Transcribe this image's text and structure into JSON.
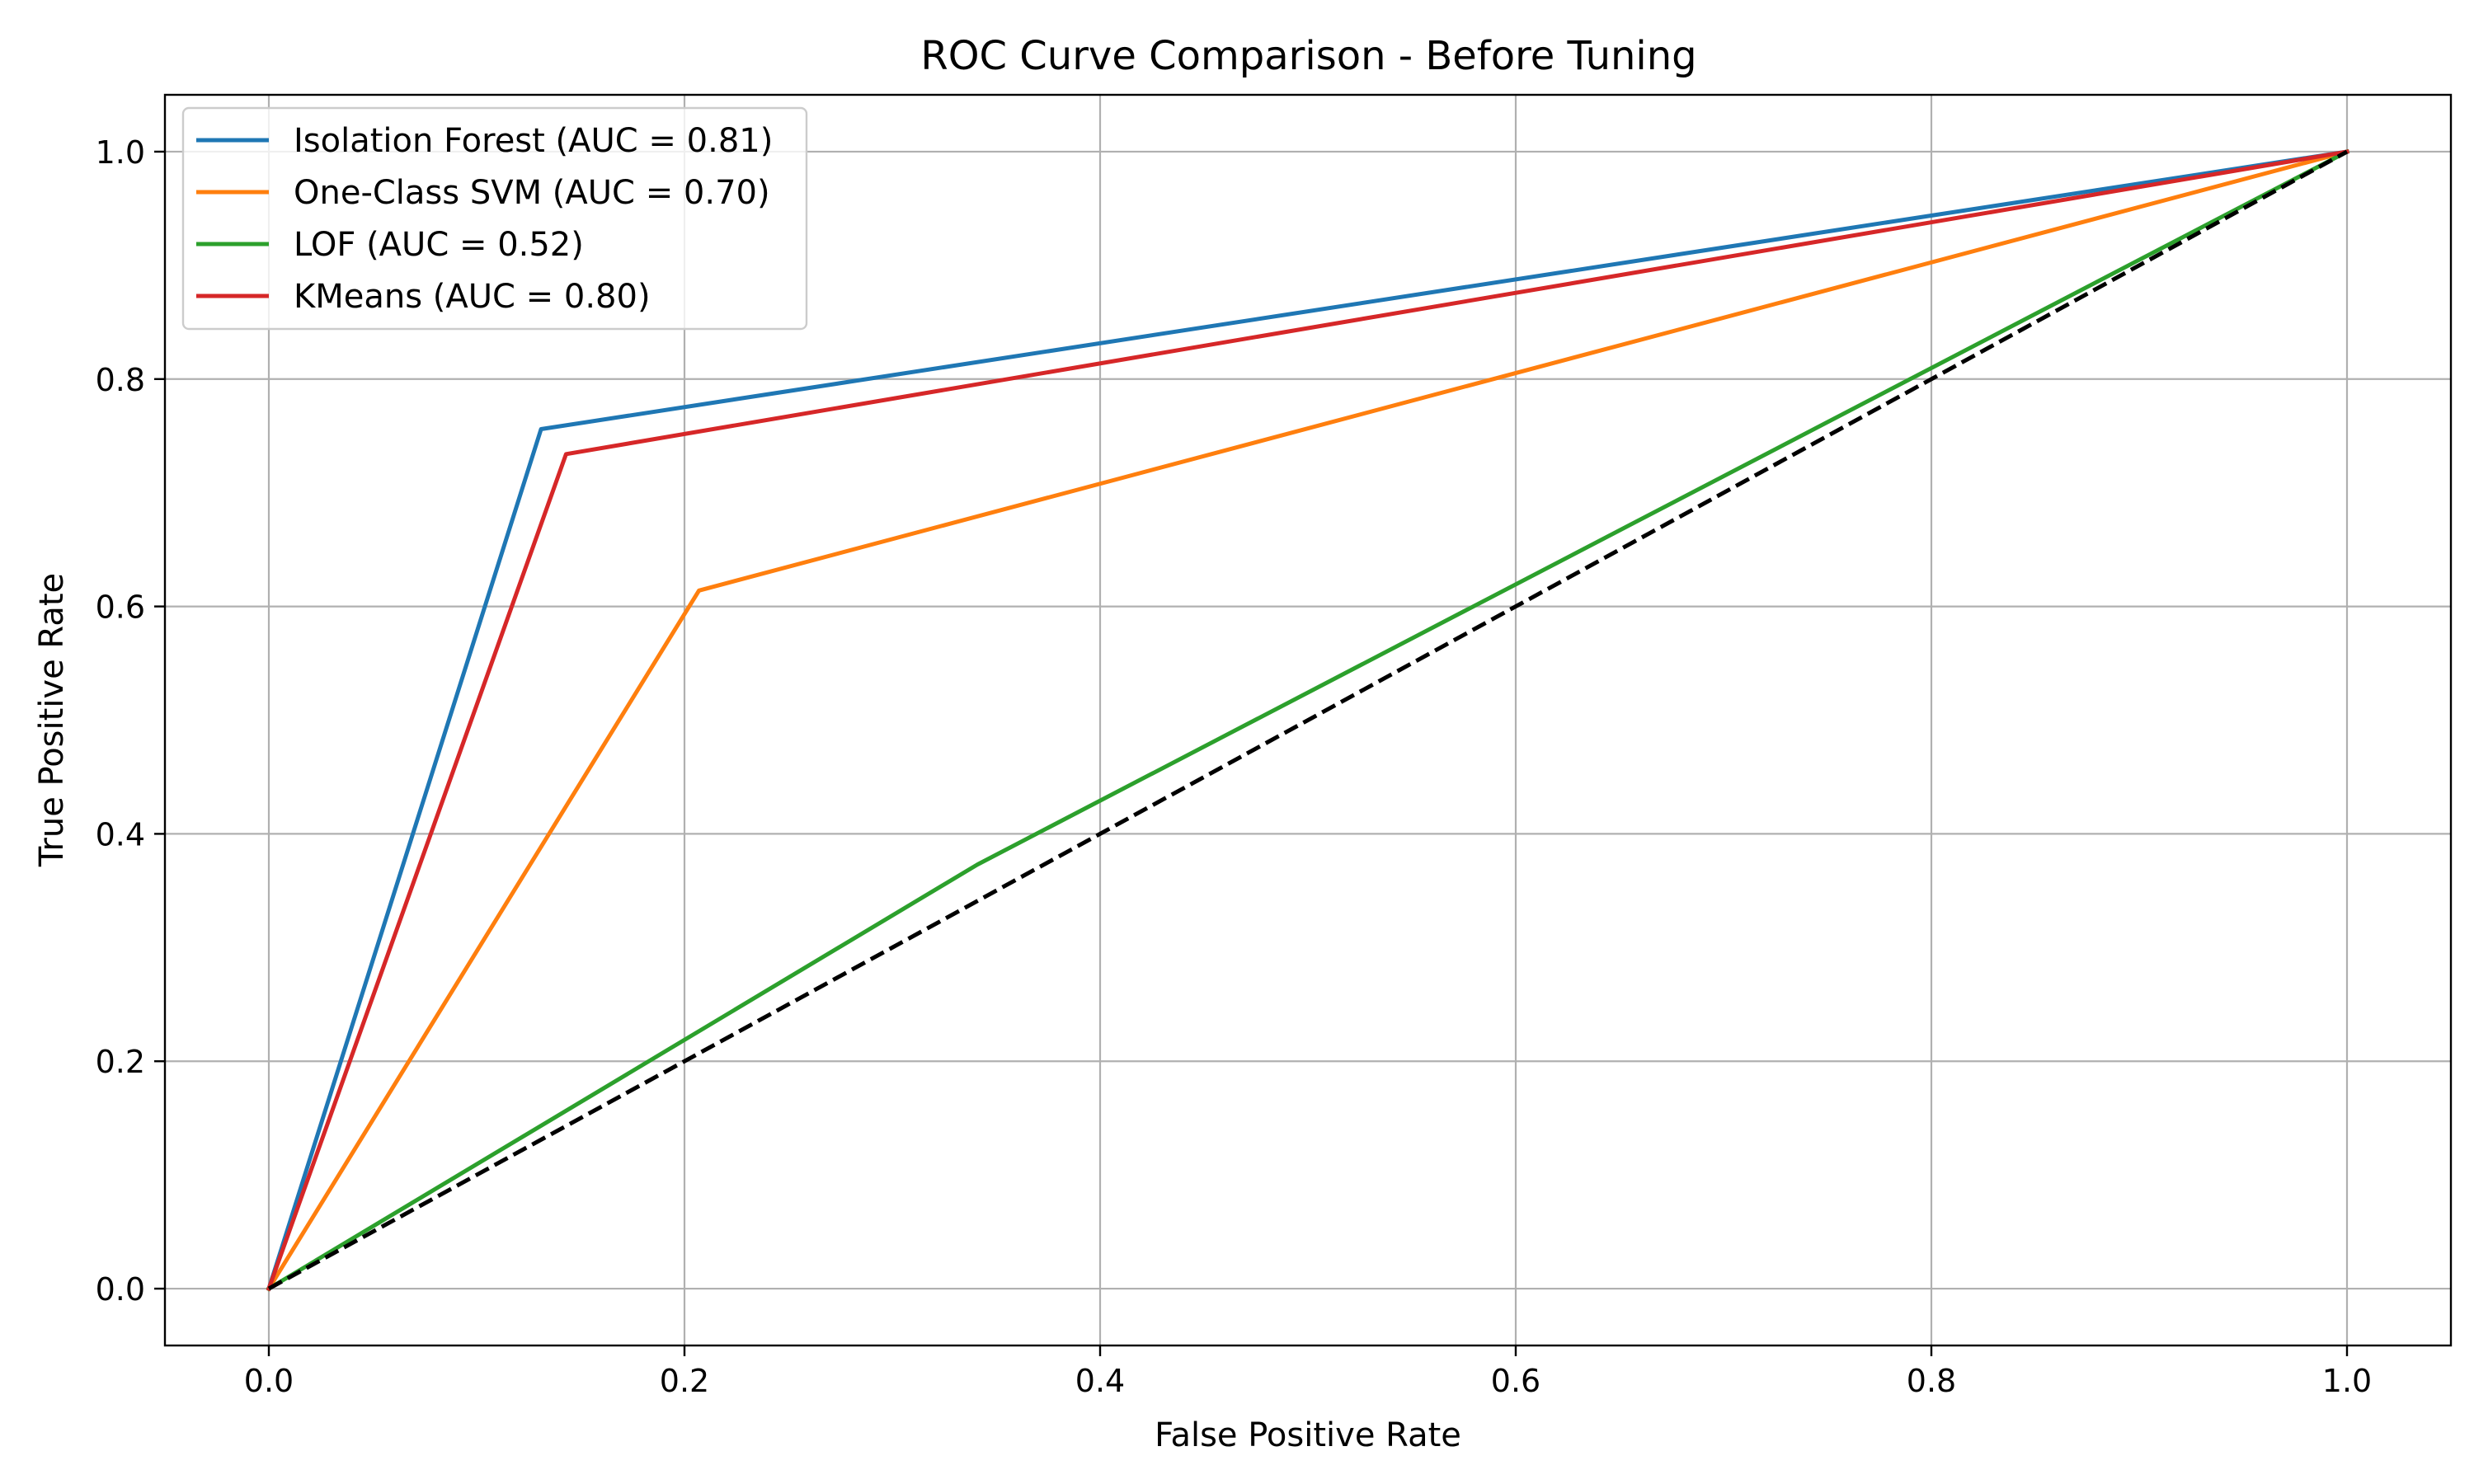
{
  "chart_data": {
    "type": "line",
    "title": "ROC Curve Comparison - Before Tuning",
    "xlabel": "False Positive Rate",
    "ylabel": "True Positive Rate",
    "xlim": [
      -0.05,
      1.05
    ],
    "ylim": [
      -0.05,
      1.05
    ],
    "xticks": [
      0.0,
      0.2,
      0.4,
      0.6,
      0.8,
      1.0
    ],
    "yticks": [
      0.0,
      0.2,
      0.4,
      0.6,
      0.8,
      1.0
    ],
    "xtick_labels": [
      "0.0",
      "0.2",
      "0.4",
      "0.6",
      "0.8",
      "1.0"
    ],
    "ytick_labels": [
      "0.0",
      "0.2",
      "0.4",
      "0.6",
      "0.8",
      "1.0"
    ],
    "grid": true,
    "legend_position": "top-left",
    "series": [
      {
        "name": "Isolation Forest (AUC = 0.81)",
        "color": "#1f77b4",
        "x": [
          0.0,
          0.131,
          1.0
        ],
        "y": [
          0.0,
          0.756,
          1.0
        ]
      },
      {
        "name": "One-Class SVM (AUC = 0.70)",
        "color": "#ff7f0e",
        "x": [
          0.0,
          0.207,
          1.0
        ],
        "y": [
          0.0,
          0.614,
          1.0
        ]
      },
      {
        "name": "LOF (AUC = 0.52)",
        "color": "#2ca02c",
        "x": [
          0.0,
          0.341,
          1.0
        ],
        "y": [
          0.0,
          0.373,
          1.0
        ]
      },
      {
        "name": "KMeans (AUC = 0.80)",
        "color": "#d62728",
        "x": [
          0.0,
          0.143,
          1.0
        ],
        "y": [
          0.0,
          0.734,
          1.0
        ]
      }
    ],
    "reference_line": {
      "color": "#000000",
      "style": "dashed",
      "x": [
        0.0,
        1.0
      ],
      "y": [
        0.0,
        1.0
      ]
    }
  }
}
